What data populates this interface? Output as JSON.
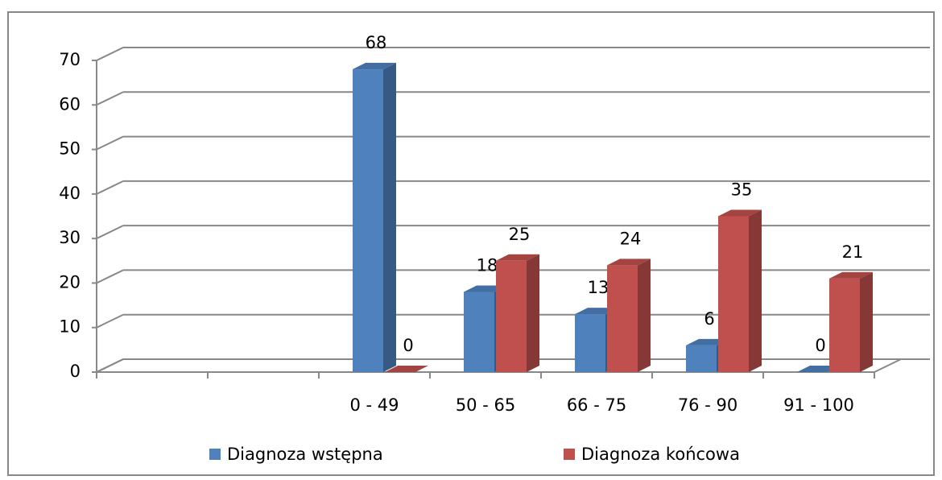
{
  "chart_data": {
    "type": "bar3d",
    "categories": [
      null,
      null,
      "0 - 49",
      "50 - 65",
      "66 - 75",
      "76 - 90",
      "91 - 100"
    ],
    "series": [
      {
        "name": "Diagnoza wstępna",
        "color": "#4f81bd",
        "values": [
          null,
          null,
          68,
          18,
          13,
          6,
          0
        ]
      },
      {
        "name": "Diagnoza końcowa",
        "color": "#c0504d",
        "values": [
          null,
          null,
          0,
          25,
          24,
          35,
          21
        ]
      }
    ],
    "ylim": [
      0,
      70
    ],
    "yticks": [
      0,
      10,
      20,
      30,
      40,
      50,
      60,
      70
    ],
    "grid": true,
    "legend": "bottom",
    "data_labels": true
  }
}
